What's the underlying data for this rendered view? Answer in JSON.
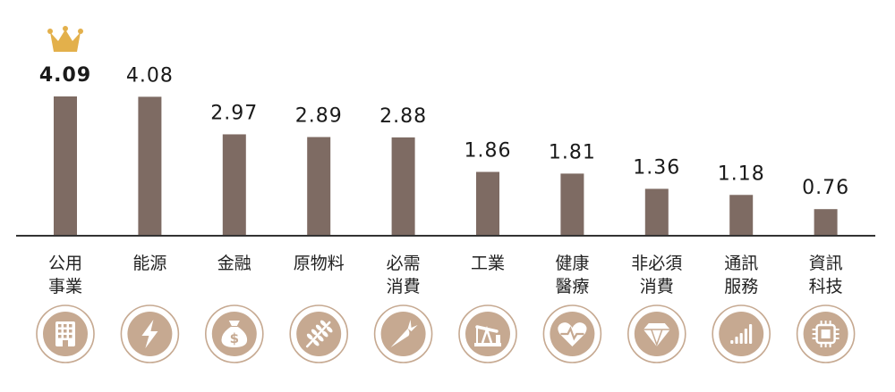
{
  "chart_data": {
    "type": "bar",
    "categories": [
      [
        "公用",
        "事業"
      ],
      [
        "能源"
      ],
      [
        "金融"
      ],
      [
        "原物料"
      ],
      [
        "必需",
        "消費"
      ],
      [
        "工業"
      ],
      [
        "健康",
        "醫療"
      ],
      [
        "非必須",
        "消費"
      ],
      [
        "通訊",
        "服務"
      ],
      [
        "資訊",
        "科技"
      ]
    ],
    "values": [
      4.09,
      4.08,
      2.97,
      2.89,
      2.88,
      1.86,
      1.81,
      1.36,
      1.18,
      0.76
    ],
    "value_labels": [
      "4.09",
      "4.08",
      "2.97",
      "2.89",
      "2.88",
      "1.86",
      "1.81",
      "1.36",
      "1.18",
      "0.76"
    ],
    "highlight_index": 0,
    "icons": [
      "building-icon",
      "lightning-icon",
      "money-bag-icon",
      "wheat-icon",
      "carrot-icon",
      "oil-pump-icon",
      "heartbeat-icon",
      "diamond-icon",
      "signal-bars-icon",
      "chip-icon"
    ],
    "title": "",
    "xlabel": "",
    "ylabel": "",
    "ylim": [
      0,
      4.09
    ],
    "grid": false,
    "colors": {
      "bar": "#7e6b63",
      "icon_bg": "#c6a991",
      "icon_ring": "#c6a991",
      "crown": "#e3b04b"
    }
  }
}
